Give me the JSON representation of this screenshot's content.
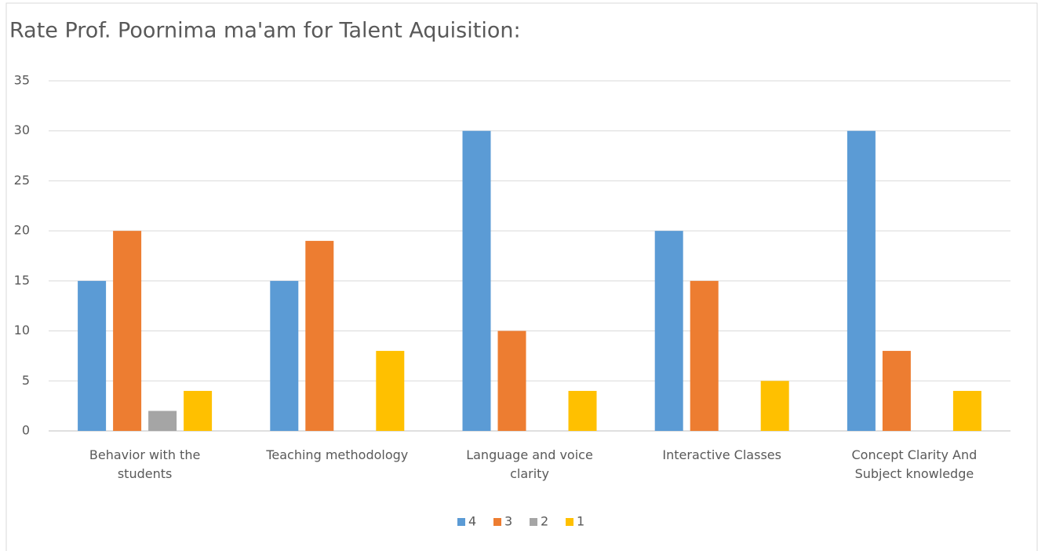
{
  "chart_data": {
    "type": "bar",
    "title": "Rate Prof. Poornima ma'am  for Talent Aquisition:",
    "categories": [
      "Behavior with the students",
      "Teaching methodology",
      "Language and voice clarity",
      "Interactive Classes",
      "Concept Clarity And Subject knowledge"
    ],
    "series": [
      {
        "name": "4",
        "color": "#5b9bd5",
        "values": [
          15,
          15,
          30,
          20,
          30
        ]
      },
      {
        "name": "3",
        "color": "#ed7d31",
        "values": [
          20,
          19,
          10,
          15,
          8
        ]
      },
      {
        "name": "2",
        "color": "#a5a5a5",
        "values": [
          2,
          0,
          0,
          0,
          0
        ]
      },
      {
        "name": "1",
        "color": "#ffc000",
        "values": [
          4,
          8,
          4,
          5,
          4
        ]
      }
    ],
    "ylim": [
      0,
      35
    ],
    "yticks": [
      0,
      5,
      10,
      15,
      20,
      25,
      30,
      35
    ],
    "grid": true,
    "legend": "bottom"
  }
}
